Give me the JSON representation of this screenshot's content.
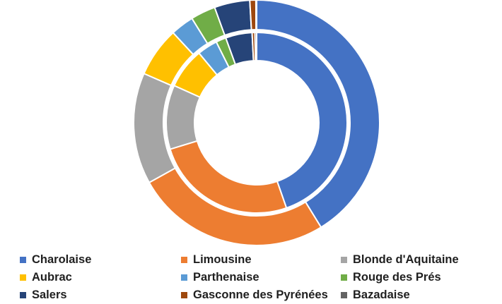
{
  "chart_data": {
    "type": "pie",
    "subtype": "double-donut",
    "title": "",
    "categories": [
      "Charolaise",
      "Limousine",
      "Blonde d'Aquitaine",
      "Aubrac",
      "Parthenaise",
      "Rouge des Prés",
      "Salers",
      "Gasconne des Pyrénées",
      "Bazadaise"
    ],
    "colors": [
      "#4472C4",
      "#ED7D31",
      "#A5A5A5",
      "#FFC000",
      "#5B9BD5",
      "#70AD47",
      "#264478",
      "#9E480E",
      "#636363"
    ],
    "series": [
      {
        "ring": "inner",
        "values": [
          44.3,
          25.4,
          11.4,
          7.2,
          3.6,
          1.8,
          4.7,
          0.5,
          0.3
        ]
      },
      {
        "ring": "outer",
        "values": [
          41.6,
          25.9,
          14.8,
          6.6,
          3.1,
          3.3,
          4.7,
          0.8,
          0.1
        ]
      }
    ],
    "legend": {
      "position": "bottom",
      "items": [
        "Charolaise",
        "Limousine",
        "Blonde d'Aquitaine",
        "Aubrac",
        "Parthenaise",
        "Rouge des Prés",
        "Salers",
        "Gasconne des Pyrénées",
        "Bazadaise"
      ]
    }
  }
}
